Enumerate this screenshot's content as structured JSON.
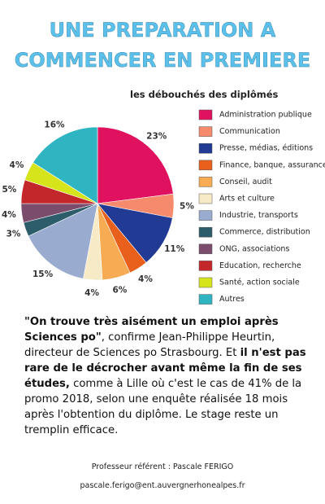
{
  "header": {
    "title_lines": [
      "UNE PREPARATION A",
      "COMMENCER EN PREMIERE"
    ]
  },
  "chart_data": {
    "type": "pie",
    "title": "les débouchés des diplômés",
    "categories": [
      "Administration publique",
      "Communication",
      "Presse, médias, éditions",
      "Finance, banque, assurance",
      "Conseil, audit",
      "Arts et culture",
      "Industrie,  transports",
      "Commerce, distribution",
      "ONG, associations",
      "Education, recherche",
      "Santé,  action sociale",
      "Autres"
    ],
    "values": [
      23,
      5,
      11,
      4,
      6,
      4,
      15,
      3,
      4,
      5,
      4,
      16
    ],
    "value_labels": [
      "23%",
      "5%",
      "11%",
      "4%",
      "6%",
      "4%",
      "15%",
      "3%",
      "4%",
      "5%",
      "4%",
      "16%"
    ],
    "colors": [
      "#e0125f",
      "#f58a6c",
      "#213a94",
      "#e8601c",
      "#f7ab52",
      "#f6ebc6",
      "#9aabd0",
      "#2d5d6b",
      "#7b4c6c",
      "#c3262b",
      "#d6e41c",
      "#2fb5c2"
    ]
  },
  "paragraph": [
    {
      "text": "\"On trouve très aisément un emploi après Sciences po\"",
      "bold": true
    },
    {
      "text": ", confirme Jean-Philippe Heurtin, directeur de Sciences po Strasbourg. Et ",
      "bold": false
    },
    {
      "text": "il n'est pas rare de le décrocher avant même la fin de ses études,",
      "bold": true
    },
    {
      "text": " comme à Lille où c'est le cas de 41% de la promo 2018, selon une enquête réalisée 18 mois après l'obtention du diplôme. Le stage reste un tremplin efficace.",
      "bold": false
    }
  ],
  "footer": {
    "lines": [
      "Professeur référent : Pascale FERIGO",
      "pascale.ferigo@ent.auvergnerhonealpes.fr"
    ]
  }
}
